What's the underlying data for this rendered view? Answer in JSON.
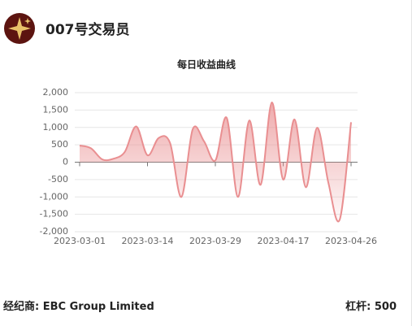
{
  "header": {
    "name": "007号交易员"
  },
  "chart_data": {
    "type": "line",
    "title": "每日收益曲线",
    "categories": [
      "2023-03-01",
      null,
      null,
      null,
      null,
      null,
      "2023-03-14",
      null,
      null,
      null,
      null,
      null,
      "2023-03-29",
      null,
      null,
      null,
      null,
      null,
      "2023-04-17",
      null,
      null,
      null,
      null,
      null,
      "2023-04-26"
    ],
    "series": [
      {
        "name": "每日收益",
        "color": "#e98f91",
        "values": [
          480,
          400,
          80,
          100,
          300,
          1030,
          200,
          700,
          550,
          -1000,
          950,
          600,
          50,
          1280,
          -1000,
          1200,
          -650,
          1720,
          -500,
          1230,
          -720,
          990,
          -600,
          -1650,
          1150
        ]
      }
    ],
    "ylim": [
      -2000,
      2000
    ],
    "yticks": [
      {
        "value": -2000,
        "label": "-2,000"
      },
      {
        "value": -1500,
        "label": "-1,500"
      },
      {
        "value": -1000,
        "label": "-1,000"
      },
      {
        "value": -500,
        "label": "-500"
      },
      0,
      {
        "value": 500,
        "label": "500"
      },
      {
        "value": 1000,
        "label": "1,000"
      },
      {
        "value": 1500,
        "label": "1,500"
      },
      {
        "value": 2000,
        "label": "2,000"
      }
    ],
    "grid": true
  },
  "footer": {
    "broker": "经纪商: EBC Group Limited",
    "leverage": "杠杆: 500"
  }
}
